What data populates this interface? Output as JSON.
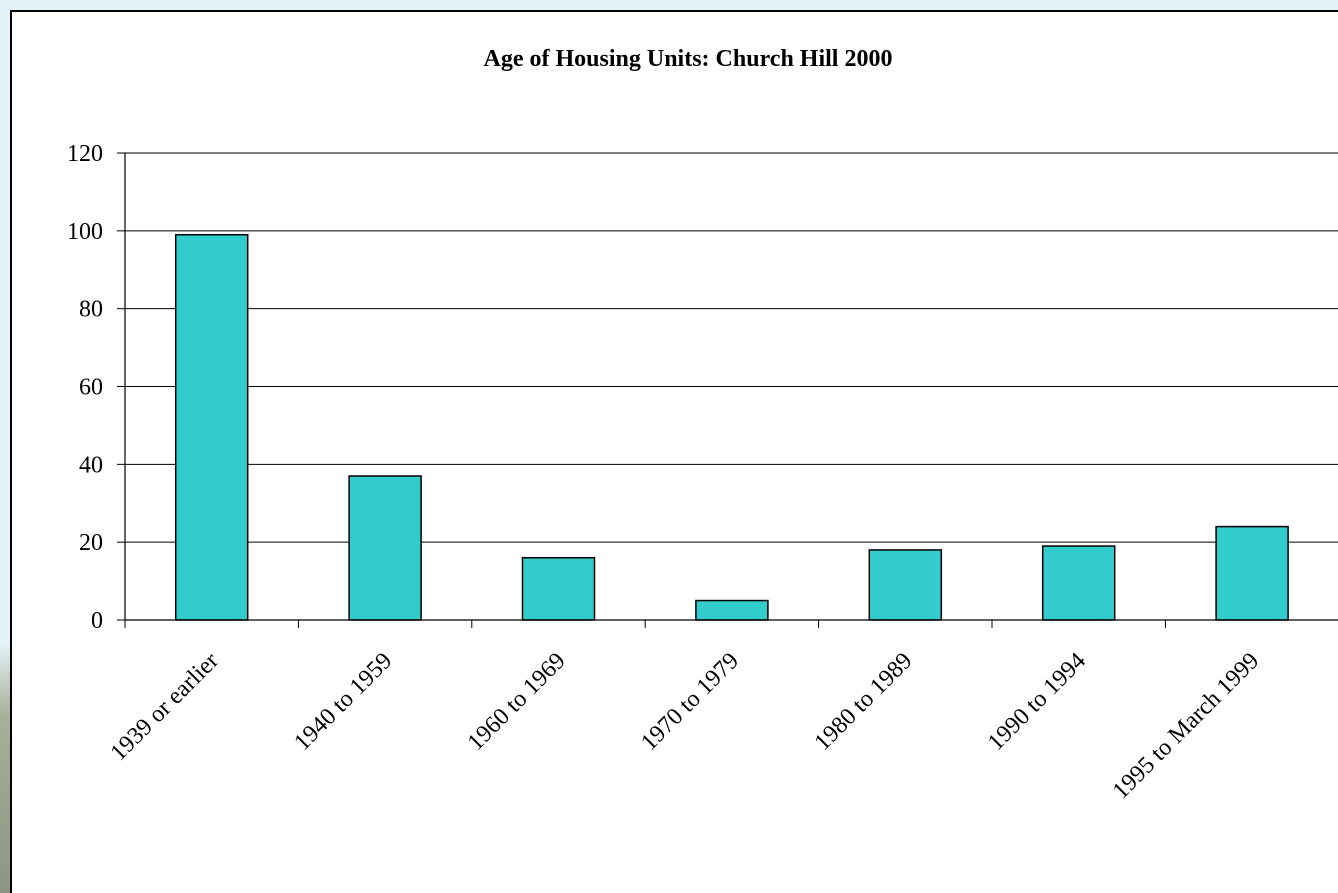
{
  "chart_data": {
    "type": "bar",
    "title": "Age of Housing Units: Church Hill 2000",
    "xlabel": "",
    "ylabel": "",
    "categories": [
      "1939 or earlier",
      "1940 to 1959",
      "1960 to 1969",
      "1970 to 1979",
      "1980 to 1989",
      "1990 to 1994",
      "1995 to March 1999"
    ],
    "values": [
      99,
      37,
      16,
      5,
      18,
      19,
      24
    ],
    "ylim": [
      0,
      120
    ],
    "yticks": [
      0,
      20,
      40,
      60,
      80,
      100,
      120
    ],
    "grid": true,
    "legend": "none",
    "bar_color": "#33cccc",
    "bar_edge_color": "#000000",
    "background_color": "#ffffff"
  }
}
